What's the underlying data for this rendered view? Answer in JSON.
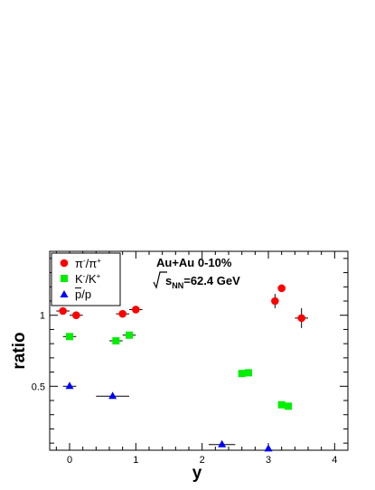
{
  "chart_data": {
    "type": "scatter",
    "xlabel": "y",
    "ylabel": "ratio",
    "xlim": [
      -0.3,
      4.2
    ],
    "ylim": [
      0.05,
      1.45
    ],
    "xticks": [
      0,
      1,
      2,
      3,
      4
    ],
    "xtick_labels": [
      "0",
      "1",
      "2",
      "3",
      "4"
    ],
    "yticks": [
      0.5,
      1
    ],
    "ytick_labels": [
      "0.5",
      "1"
    ],
    "grid": false,
    "legend_position": "top-left",
    "annotations": [
      {
        "id": "system",
        "text": "Au+Au 0-10%"
      },
      {
        "id": "energy",
        "text": "√s_NN=62.4 GeV",
        "prefix": "s",
        "subscript": "NN",
        "suffix": "=62.4 GeV"
      }
    ],
    "series": [
      {
        "name": "π⁻/π⁺",
        "legend_main": "π",
        "legend_sup1": "-",
        "legend_mid": "/π",
        "legend_sup2": "+",
        "marker": "circle",
        "color": "#ff0000",
        "points": [
          {
            "x": -0.1,
            "y": 1.03,
            "xerr": 0.1,
            "yerr": 0.0
          },
          {
            "x": 0.1,
            "y": 1.0,
            "xerr": 0.1,
            "yerr": 0.0
          },
          {
            "x": 0.8,
            "y": 1.01,
            "xerr": 0.1,
            "yerr": 0.0
          },
          {
            "x": 1.0,
            "y": 1.04,
            "xerr": 0.1,
            "yerr": 0.0
          },
          {
            "x": 3.1,
            "y": 1.1,
            "xerr": 0.0,
            "yerr": 0.05
          },
          {
            "x": 3.2,
            "y": 1.19,
            "xerr": 0.0,
            "yerr": 0.0
          },
          {
            "x": 3.5,
            "y": 0.98,
            "xerr": 0.1,
            "yerr": 0.07
          }
        ]
      },
      {
        "name": "K⁻/K⁺",
        "legend_main": "K",
        "legend_sup1": "-",
        "legend_mid": "/K",
        "legend_sup2": "+",
        "marker": "square",
        "color": "#00ee00",
        "points": [
          {
            "x": 0.0,
            "y": 0.85,
            "xerr": 0.1,
            "yerr": 0.0
          },
          {
            "x": 0.7,
            "y": 0.82,
            "xerr": 0.1,
            "yerr": 0.0
          },
          {
            "x": 0.9,
            "y": 0.86,
            "xerr": 0.1,
            "yerr": 0.0
          },
          {
            "x": 2.6,
            "y": 0.59,
            "xerr": 0.05,
            "yerr": 0.0
          },
          {
            "x": 2.7,
            "y": 0.595,
            "xerr": 0.05,
            "yerr": 0.0
          },
          {
            "x": 3.2,
            "y": 0.37,
            "xerr": 0.05,
            "yerr": 0.0
          },
          {
            "x": 3.3,
            "y": 0.36,
            "xerr": 0.05,
            "yerr": 0.02
          }
        ]
      },
      {
        "name": "p̄/p",
        "legend_main": "p/p",
        "legend_sup1": "",
        "legend_mid": "",
        "legend_sup2": "",
        "marker": "triangle",
        "color": "#0000ff",
        "points": [
          {
            "x": 0.0,
            "y": 0.5,
            "xerr": 0.1,
            "yerr": 0.0
          },
          {
            "x": 0.65,
            "y": 0.43,
            "xerr": 0.25,
            "yerr": 0.0
          },
          {
            "x": 2.3,
            "y": 0.09,
            "xerr": 0.2,
            "yerr": 0.0
          },
          {
            "x": 3.0,
            "y": 0.06,
            "xerr": 0.0,
            "yerr": 0.0
          }
        ]
      }
    ]
  }
}
